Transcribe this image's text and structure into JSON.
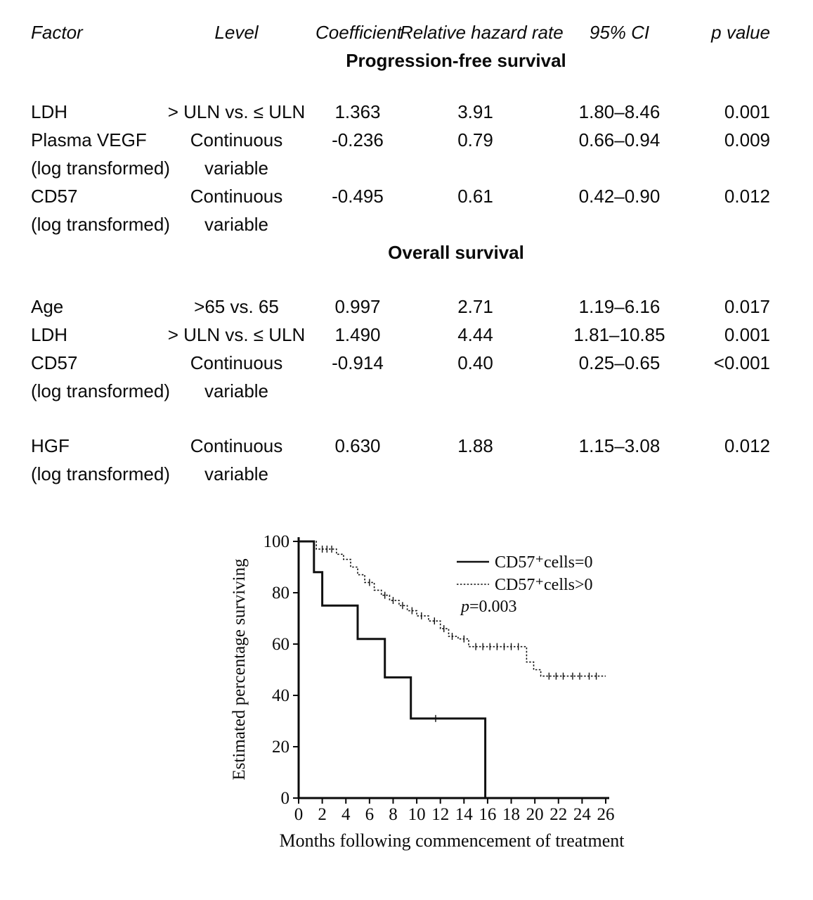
{
  "table": {
    "headers": [
      "Factor",
      "Level",
      "Coefficient",
      "Relative hazard rate",
      "95% CI",
      "p value"
    ],
    "sections": [
      {
        "title": "Progression-free survival",
        "rows": [
          {
            "factor": [
              "LDH"
            ],
            "level": [
              "> ULN vs. ≤ ULN"
            ],
            "coefficient": "1.363",
            "hazard": "3.91",
            "ci": "1.80–8.46",
            "p": "0.001"
          },
          {
            "factor": [
              "Plasma VEGF",
              "(log transformed)"
            ],
            "level": [
              "Continuous",
              "variable"
            ],
            "coefficient": "-0.236",
            "hazard": "0.79",
            "ci": "0.66–0.94",
            "p": "0.009"
          },
          {
            "factor": [
              "CD57",
              "(log transformed)"
            ],
            "level": [
              "Continuous",
              "variable"
            ],
            "coefficient": "-0.495",
            "hazard": "0.61",
            "ci": "0.42–0.90",
            "p": "0.012"
          }
        ]
      },
      {
        "title": "Overall survival",
        "rows": [
          {
            "factor": [
              "Age"
            ],
            "level": [
              ">65 vs. 65"
            ],
            "coefficient": "0.997",
            "hazard": "2.71",
            "ci": "1.19–6.16",
            "p": "0.017"
          },
          {
            "factor": [
              "LDH"
            ],
            "level": [
              "> ULN vs. ≤ ULN"
            ],
            "coefficient": "1.490",
            "hazard": "4.44",
            "ci": "1.81–10.85",
            "p": "0.001"
          },
          {
            "factor": [
              "CD57",
              "(log transformed)"
            ],
            "level": [
              "Continuous",
              "variable"
            ],
            "coefficient": "-0.914",
            "hazard": "0.40",
            "ci": "0.25–0.65",
            "p": "<0.001",
            "gap_after": true
          },
          {
            "factor": [
              "HGF",
              "(log transformed)"
            ],
            "level": [
              "Continuous",
              "variable"
            ],
            "coefficient": "0.630",
            "hazard": "1.88",
            "ci": "1.15–3.08",
            "p": "0.012"
          }
        ]
      }
    ]
  },
  "chart_data": {
    "type": "line",
    "subtype": "kaplan-meier-step",
    "title": "",
    "xlabel": "Months following commencement of treatment",
    "ylabel": "Estimated percentage surviving",
    "xlim": [
      0,
      26
    ],
    "ylim": [
      0,
      100
    ],
    "xticks": [
      0,
      2,
      4,
      6,
      8,
      10,
      12,
      14,
      16,
      18,
      20,
      22,
      24,
      26
    ],
    "yticks": [
      0,
      20,
      40,
      60,
      80,
      100
    ],
    "grid": false,
    "legend_position": "inside-top-right",
    "annotation": {
      "italic": "p",
      "text": "=0.003"
    },
    "series": [
      {
        "name": "CD57⁺cells=0",
        "style": "solid",
        "points": [
          [
            0,
            100
          ],
          [
            1.3,
            100
          ],
          [
            1.3,
            88
          ],
          [
            2,
            88
          ],
          [
            2,
            75
          ],
          [
            5,
            75
          ],
          [
            5,
            62
          ],
          [
            7.3,
            62
          ],
          [
            7.3,
            47
          ],
          [
            9.5,
            47
          ],
          [
            9.5,
            31
          ],
          [
            15.8,
            31
          ],
          [
            15.8,
            0
          ]
        ],
        "censors": [
          [
            11.6,
            31
          ]
        ]
      },
      {
        "name": "CD57⁺cells>0",
        "style": "dashed",
        "points": [
          [
            0,
            100
          ],
          [
            1.5,
            100
          ],
          [
            1.5,
            97
          ],
          [
            3.2,
            97
          ],
          [
            3.2,
            95
          ],
          [
            3.8,
            95
          ],
          [
            3.8,
            93
          ],
          [
            4.4,
            93
          ],
          [
            4.4,
            90
          ],
          [
            5.0,
            90
          ],
          [
            5.0,
            87
          ],
          [
            5.6,
            87
          ],
          [
            5.6,
            84
          ],
          [
            6.4,
            84
          ],
          [
            6.4,
            81
          ],
          [
            7.0,
            81
          ],
          [
            7.0,
            79
          ],
          [
            7.7,
            79
          ],
          [
            7.7,
            77
          ],
          [
            8.5,
            77
          ],
          [
            8.5,
            75
          ],
          [
            9.2,
            75
          ],
          [
            9.2,
            73
          ],
          [
            10.0,
            73
          ],
          [
            10.0,
            71
          ],
          [
            11.0,
            71
          ],
          [
            11.0,
            69
          ],
          [
            12.0,
            69
          ],
          [
            12.0,
            66
          ],
          [
            12.7,
            66
          ],
          [
            12.7,
            63
          ],
          [
            13.5,
            63
          ],
          [
            13.5,
            62
          ],
          [
            14.4,
            62
          ],
          [
            14.4,
            59
          ],
          [
            19.3,
            59
          ],
          [
            19.3,
            53
          ],
          [
            19.9,
            53
          ],
          [
            19.9,
            50
          ],
          [
            20.5,
            50
          ],
          [
            20.5,
            47.5
          ],
          [
            26,
            47.5
          ]
        ],
        "censors": [
          [
            2.0,
            97
          ],
          [
            2.4,
            97
          ],
          [
            2.8,
            97
          ],
          [
            6.0,
            84
          ],
          [
            7.3,
            79
          ],
          [
            8.0,
            77
          ],
          [
            8.8,
            75
          ],
          [
            9.6,
            73
          ],
          [
            10.4,
            71
          ],
          [
            11.5,
            69
          ],
          [
            12.3,
            66
          ],
          [
            13.0,
            63
          ],
          [
            14.0,
            62
          ],
          [
            15.0,
            59
          ],
          [
            15.6,
            59
          ],
          [
            16.2,
            59
          ],
          [
            16.8,
            59
          ],
          [
            17.4,
            59
          ],
          [
            18.0,
            59
          ],
          [
            18.6,
            59
          ],
          [
            21.2,
            47.5
          ],
          [
            21.8,
            47.5
          ],
          [
            22.4,
            47.5
          ],
          [
            23.2,
            47.5
          ],
          [
            23.8,
            47.5
          ],
          [
            24.6,
            47.5
          ],
          [
            25.2,
            47.5
          ]
        ]
      }
    ]
  }
}
